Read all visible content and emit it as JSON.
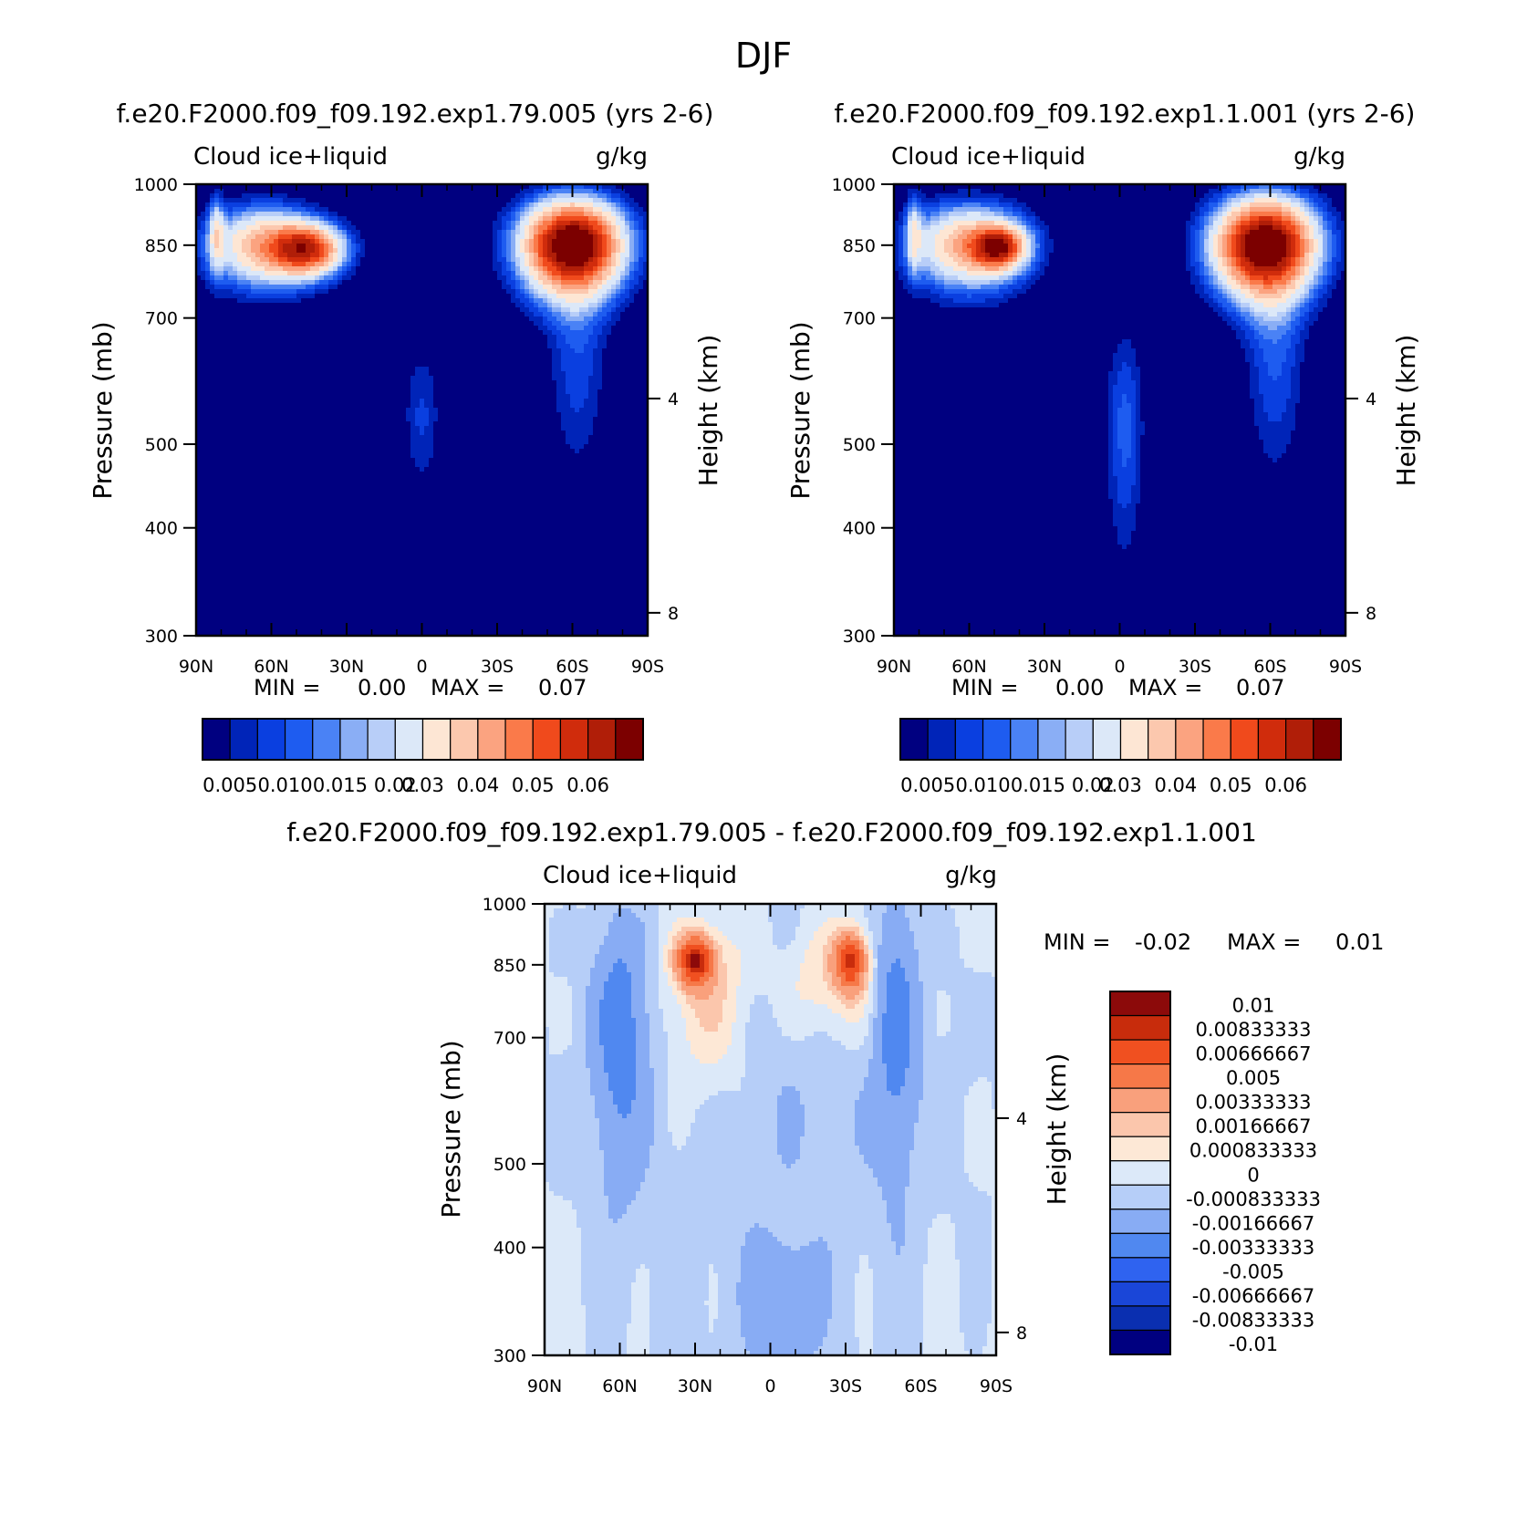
{
  "season_title": "DJF",
  "colors": {
    "abs_levels": [
      "#000080",
      "#0024b8",
      "#0a3fe0",
      "#1e5cf0",
      "#4a82f5",
      "#8aaef5",
      "#b8cef8",
      "#dce8f8",
      "#fde6d4",
      "#fcc8ae",
      "#fba380",
      "#fa7a4a",
      "#f04a1c",
      "#d02c0c",
      "#b01e08",
      "#7c0000"
    ],
    "diff_levels": [
      "#000080",
      "#0a2fb0",
      "#1a46d8",
      "#2f63f0",
      "#5088f0",
      "#88acf4",
      "#b6cef8",
      "#dce9f9",
      "#fde8d6",
      "#fbc6ac",
      "#f9a07c",
      "#f67848",
      "#f05020",
      "#c82c0c",
      "#8c0a0a"
    ]
  },
  "panels": [
    {
      "id": "left",
      "title": "f.e20.F2000.f09_f09.192.exp1.79.005 (yrs 2-6)",
      "field_label": "Cloud  ice+liquid",
      "units_label": "g/kg",
      "ylabel": "Pressure (mb)",
      "y2label": "Height (km)",
      "minmax": {
        "min_label": "MIN =",
        "min_value": "0.00",
        "max_label": "MAX =",
        "max_value": "0.07"
      }
    },
    {
      "id": "right",
      "title": "f.e20.F2000.f09_f09.192.exp1.1.001 (yrs 2-6)",
      "field_label": "Cloud  ice+liquid",
      "units_label": "g/kg",
      "ylabel": "Pressure (mb)",
      "y2label": "Height (km)",
      "minmax": {
        "min_label": "MIN =",
        "min_value": "0.00",
        "max_label": "MAX =",
        "max_value": "0.07"
      }
    },
    {
      "id": "diff",
      "title": "f.e20.F2000.f09_f09.192.exp1.79.005 - f.e20.F2000.f09_f09.192.exp1.1.001",
      "field_label": "Cloud  ice+liquid",
      "units_label": "g/kg",
      "ylabel": "Pressure (mb)",
      "y2label": "Height (km)",
      "minmax": {
        "min_label": "MIN =",
        "min_value": "-0.02",
        "max_label": "MAX =",
        "max_value": "0.01"
      }
    }
  ],
  "chart_data": [
    {
      "type": "heatmap",
      "panel": "left",
      "title": "f.e20.F2000.f09_f09.192.exp1.79.005 (yrs 2-6)",
      "xlabel": "",
      "ylabel": "Pressure (mb)",
      "y2label": "Height (km)",
      "x_ticks": [
        "90N",
        "60N",
        "30N",
        "0",
        "30S",
        "60S",
        "90S"
      ],
      "y_ticks": [
        "300",
        "400",
        "500",
        "700",
        "850",
        "1000"
      ],
      "y2_ticks": [
        "8",
        "4"
      ],
      "xlim": [
        90,
        -90
      ],
      "ylim": [
        1000,
        300
      ],
      "colorbar_labels": [
        "0.005",
        "0.010",
        "0.015",
        "0.02",
        "0.03",
        "0.04",
        "0.05",
        "0.06"
      ],
      "levels": [
        0.005,
        0.0075,
        0.01,
        0.0125,
        0.015,
        0.0175,
        0.02,
        0.025,
        0.03,
        0.035,
        0.04,
        0.045,
        0.05,
        0.055,
        0.06
      ],
      "features": [
        {
          "lat": 63,
          "p": 850,
          "dlat": 22,
          "dp": 90,
          "value": 0.034
        },
        {
          "lat": 45,
          "p": 840,
          "dlat": 14,
          "dp": 55,
          "value": 0.042
        },
        {
          "lat": 82,
          "p": 880,
          "dlat": 3,
          "dp": 90,
          "value": 0.016
        },
        {
          "lat": -60,
          "p": 850,
          "dlat": 20,
          "dp": 105,
          "value": 0.07
        },
        {
          "lat": 0,
          "p": 540,
          "dlat": 8,
          "dp": 110,
          "value": 0.008
        },
        {
          "lat": -62,
          "p": 620,
          "dlat": 12,
          "dp": 170,
          "value": 0.009
        }
      ],
      "minmax": {
        "min": 0.0,
        "max": 0.07
      }
    },
    {
      "type": "heatmap",
      "panel": "right",
      "title": "f.e20.F2000.f09_f09.192.exp1.1.001 (yrs 2-6)",
      "xlabel": "",
      "ylabel": "Pressure (mb)",
      "y2label": "Height (km)",
      "x_ticks": [
        "90N",
        "60N",
        "30N",
        "0",
        "30S",
        "60S",
        "90S"
      ],
      "y_ticks": [
        "300",
        "400",
        "500",
        "700",
        "850",
        "1000"
      ],
      "y2_ticks": [
        "8",
        "4"
      ],
      "xlim": [
        90,
        -90
      ],
      "ylim": [
        1000,
        300
      ],
      "colorbar_labels": [
        "0.005",
        "0.010",
        "0.015",
        "0.02",
        "0.03",
        "0.04",
        "0.05",
        "0.06"
      ],
      "levels": [
        0.005,
        0.0075,
        0.01,
        0.0125,
        0.015,
        0.0175,
        0.02,
        0.025,
        0.03,
        0.035,
        0.04,
        0.045,
        0.05,
        0.055,
        0.06
      ],
      "features": [
        {
          "lat": 60,
          "p": 850,
          "dlat": 23,
          "dp": 95,
          "value": 0.036
        },
        {
          "lat": 48,
          "p": 845,
          "dlat": 10,
          "dp": 45,
          "value": 0.04
        },
        {
          "lat": 82,
          "p": 880,
          "dlat": 3,
          "dp": 90,
          "value": 0.016
        },
        {
          "lat": -58,
          "p": 850,
          "dlat": 20,
          "dp": 110,
          "value": 0.07
        },
        {
          "lat": -2,
          "p": 520,
          "dlat": 8,
          "dp": 160,
          "value": 0.011
        },
        {
          "lat": -62,
          "p": 620,
          "dlat": 12,
          "dp": 170,
          "value": 0.01
        }
      ],
      "minmax": {
        "min": 0.0,
        "max": 0.07
      }
    },
    {
      "type": "heatmap",
      "panel": "diff",
      "title": "f.e20.F2000.f09_f09.192.exp1.79.005 - f.e20.F2000.f09_f09.192.exp1.1.001",
      "xlabel": "",
      "ylabel": "Pressure (mb)",
      "y2label": "Height (km)",
      "x_ticks": [
        "90N",
        "60N",
        "30N",
        "0",
        "30S",
        "60S",
        "90S"
      ],
      "y_ticks": [
        "300",
        "400",
        "500",
        "700",
        "850",
        "1000"
      ],
      "y2_ticks": [
        "8",
        "4"
      ],
      "xlim": [
        90,
        -90
      ],
      "ylim": [
        1000,
        300
      ],
      "colorbar_labels": [
        "0.01",
        "0.00833333",
        "0.00666667",
        "0.005",
        "0.00333333",
        "0.00166667",
        "0.000833333",
        "0",
        "-0.000833333",
        "-0.00166667",
        "-0.00333333",
        "-0.005",
        "-0.00666667",
        "-0.00833333",
        "-0.01"
      ],
      "levels": [
        -0.01,
        -0.00833333,
        -0.00666667,
        -0.005,
        -0.00333333,
        -0.00166667,
        -0.000833333,
        0,
        0.000833333,
        0.00166667,
        0.00333333,
        0.005,
        0.00666667,
        0.00833333
      ],
      "features": [
        {
          "lat": 0,
          "p": 650,
          "dlat": 90,
          "dp": 420,
          "value": -0.0012
        },
        {
          "lat": 60,
          "p": 720,
          "dlat": 10,
          "dp": 220,
          "value": -0.0035
        },
        {
          "lat": -50,
          "p": 750,
          "dlat": 8,
          "dp": 230,
          "value": -0.0035
        },
        {
          "lat": 25,
          "p": 780,
          "dlat": 18,
          "dp": 190,
          "value": 0.0024
        },
        {
          "lat": -25,
          "p": 820,
          "dlat": 20,
          "dp": 130,
          "value": 0.0022
        },
        {
          "lat": 30,
          "p": 860,
          "dlat": 7,
          "dp": 55,
          "value": 0.0082
        },
        {
          "lat": -32,
          "p": 860,
          "dlat": 6,
          "dp": 65,
          "value": 0.0068
        },
        {
          "lat": -5,
          "p": 340,
          "dlat": 14,
          "dp": 60,
          "value": -0.002
        }
      ],
      "minmax": {
        "min": -0.02,
        "max": 0.01
      }
    }
  ]
}
